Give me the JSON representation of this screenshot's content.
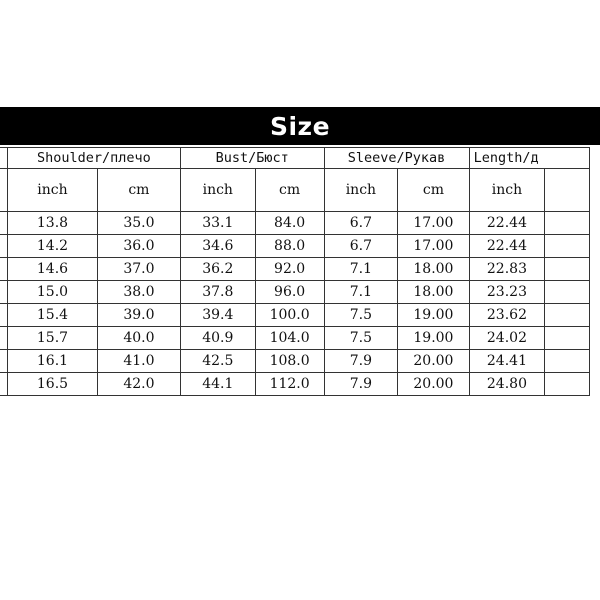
{
  "header": {
    "title": "Size"
  },
  "table": {
    "groups": [
      {
        "label": "",
        "name": "size-column-header"
      },
      {
        "label": "Shoulder/плечо",
        "name": "shoulder-header"
      },
      {
        "label": "Bust/Бюст",
        "name": "bust-header"
      },
      {
        "label": "Sleeve/Рукав",
        "name": "sleeve-header"
      },
      {
        "label": "Length/д",
        "name": "length-header"
      }
    ],
    "units": [
      "",
      "inch",
      "cm",
      "inch",
      "cm",
      "inch",
      "cm",
      "inch",
      ""
    ],
    "rows": [
      [
        "",
        "13.8",
        "35.0",
        "33.1",
        "84.0",
        "6.7",
        "17.00",
        "22.44",
        ""
      ],
      [
        "",
        "14.2",
        "36.0",
        "34.6",
        "88.0",
        "6.7",
        "17.00",
        "22.44",
        ""
      ],
      [
        "",
        "14.6",
        "37.0",
        "36.2",
        "92.0",
        "7.1",
        "18.00",
        "22.83",
        ""
      ],
      [
        "",
        "15.0",
        "38.0",
        "37.8",
        "96.0",
        "7.1",
        "18.00",
        "23.23",
        ""
      ],
      [
        "",
        "15.4",
        "39.0",
        "39.4",
        "100.0",
        "7.5",
        "19.00",
        "23.62",
        ""
      ],
      [
        "",
        "15.7",
        "40.0",
        "40.9",
        "104.0",
        "7.5",
        "19.00",
        "24.02",
        ""
      ],
      [
        "",
        "16.1",
        "41.0",
        "42.5",
        "108.0",
        "7.9",
        "20.00",
        "24.41",
        ""
      ],
      [
        "",
        "16.5",
        "42.0",
        "44.1",
        "112.0",
        "7.9",
        "20.00",
        "24.80",
        ""
      ]
    ]
  }
}
